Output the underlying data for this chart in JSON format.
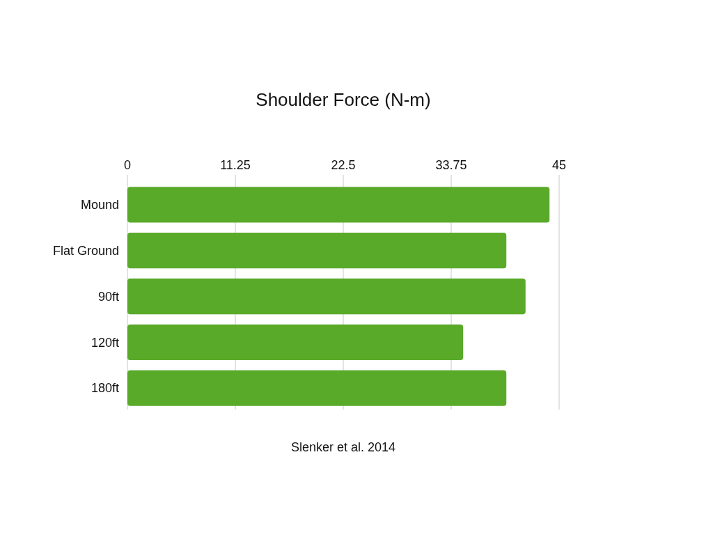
{
  "chart_data": {
    "type": "bar",
    "orientation": "horizontal",
    "title": "Shoulder Force (N-m)",
    "categories": [
      "Mound",
      "Flat Ground",
      "90ft",
      "120ft",
      "180ft"
    ],
    "values": [
      44,
      39.5,
      41.5,
      35,
      39.5
    ],
    "color": "#5aaa2a",
    "xlim": [
      0,
      45
    ],
    "xticks": [
      0,
      11.25,
      22.5,
      33.75,
      45
    ],
    "grid": "x",
    "annotations": [
      "Slenker et al. 2014"
    ]
  }
}
